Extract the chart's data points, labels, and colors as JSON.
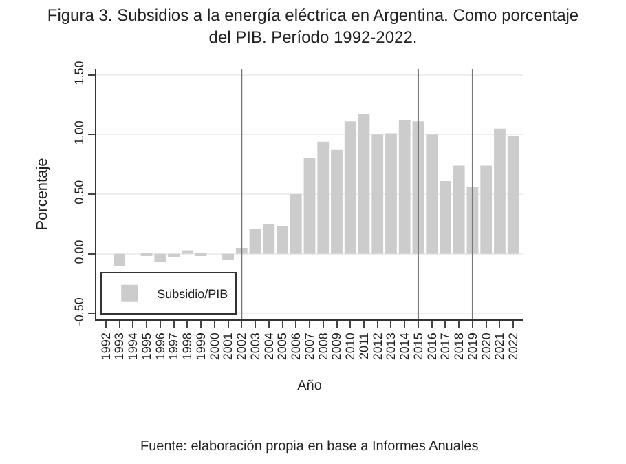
{
  "chart_data": {
    "type": "bar",
    "title": "Figura 3. Subsidios a la energía eléctrica en Argentina. Como porcentaje del PIB. Período 1992-2022.",
    "xlabel": "Año",
    "ylabel": "Porcentaje",
    "categories": [
      "1992",
      "1993",
      "1994",
      "1995",
      "1996",
      "1997",
      "1998",
      "1999",
      "2000",
      "2001",
      "2002",
      "2003",
      "2004",
      "2005",
      "2006",
      "2007",
      "2008",
      "2009",
      "2010",
      "2011",
      "2012",
      "2013",
      "2014",
      "2015",
      "2016",
      "2017",
      "2018",
      "2019",
      "2020",
      "2021",
      "2022"
    ],
    "series": [
      {
        "name": "Subsidio/PIB",
        "color": "#cccccc",
        "values": [
          0.0,
          -0.1,
          0.0,
          -0.01,
          -0.07,
          -0.03,
          0.03,
          -0.01,
          0.0,
          -0.05,
          0.05,
          0.21,
          0.25,
          0.23,
          0.5,
          0.8,
          0.94,
          0.87,
          1.11,
          1.17,
          1.0,
          1.01,
          1.12,
          1.11,
          1.0,
          0.61,
          0.74,
          0.56,
          0.74,
          1.05,
          0.99
        ]
      }
    ],
    "ylim": [
      -0.55,
      1.55
    ],
    "yticks": [
      {
        "value": -0.5,
        "label": "-0.50"
      },
      {
        "value": 0,
        "label": "0.00"
      },
      {
        "value": 0.5,
        "label": "0.50"
      },
      {
        "value": 1,
        "label": "1.00"
      },
      {
        "value": 1.5,
        "label": "1.50"
      }
    ],
    "grid": "y",
    "legend": "bottom left",
    "ref_lines": [
      {
        "axis": "x",
        "value": "2002",
        "color": "#777777"
      },
      {
        "axis": "x",
        "value": "2015",
        "color": "#777777"
      },
      {
        "axis": "x",
        "value": "2019",
        "color": "#777777"
      }
    ],
    "annotations": [
      "Fuente: elaboración propia en base a Informes Anuales"
    ]
  }
}
